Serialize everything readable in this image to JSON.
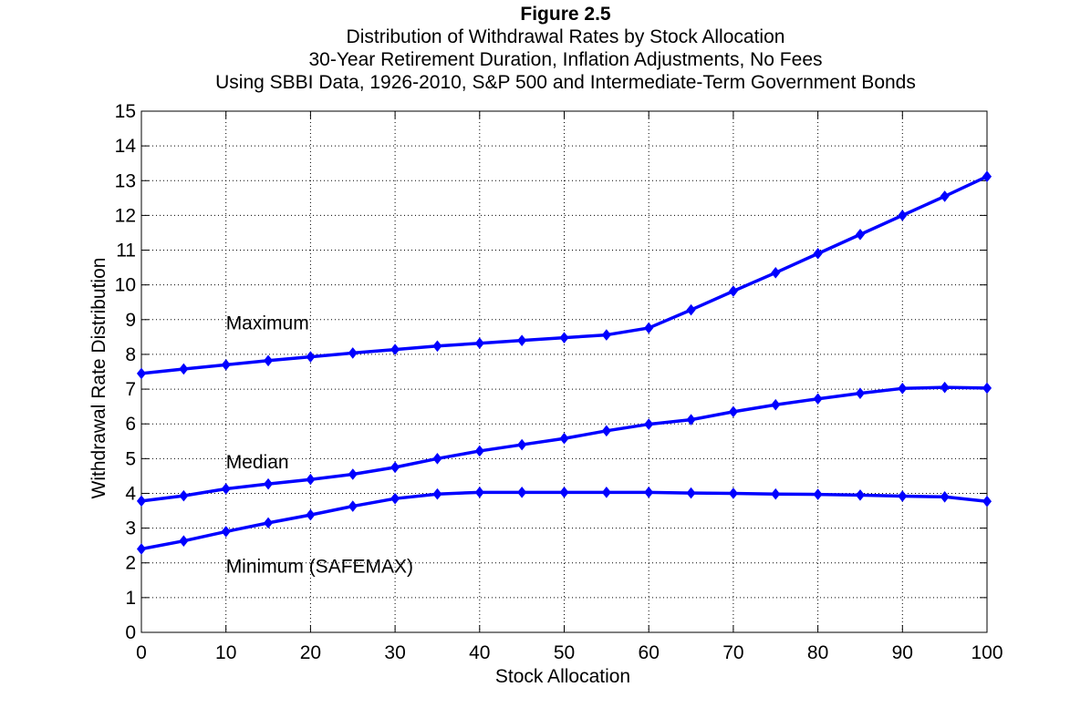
{
  "chart_data": {
    "type": "line",
    "title": "Figure 2.5",
    "subtitles": [
      "Distribution of Withdrawal Rates by Stock Allocation",
      "30-Year Retirement Duration, Inflation Adjustments, No Fees",
      "Using SBBI Data, 1926-2010, S&P 500 and Intermediate-Term Government Bonds"
    ],
    "xlabel": "Stock Allocation",
    "ylabel": "Withdrawal Rate Distribution",
    "xlim": [
      0,
      100
    ],
    "ylim": [
      0,
      15
    ],
    "xticks": [
      0,
      10,
      20,
      30,
      40,
      50,
      60,
      70,
      80,
      90,
      100
    ],
    "yticks": [
      0,
      1,
      2,
      3,
      4,
      5,
      6,
      7,
      8,
      9,
      10,
      11,
      12,
      13,
      14,
      15
    ],
    "grid": true,
    "x": [
      0,
      5,
      10,
      15,
      20,
      25,
      30,
      35,
      40,
      45,
      50,
      55,
      60,
      65,
      70,
      75,
      80,
      85,
      90,
      95,
      100
    ],
    "series": [
      {
        "name": "Maximum",
        "values": [
          7.45,
          7.58,
          7.7,
          7.82,
          7.93,
          8.04,
          8.14,
          8.24,
          8.32,
          8.4,
          8.48,
          8.56,
          8.76,
          9.28,
          9.82,
          10.35,
          10.9,
          11.45,
          12.0,
          12.55,
          13.12
        ]
      },
      {
        "name": "Median",
        "values": [
          3.78,
          3.93,
          4.13,
          4.27,
          4.4,
          4.55,
          4.75,
          5.0,
          5.22,
          5.4,
          5.58,
          5.8,
          5.99,
          6.12,
          6.35,
          6.55,
          6.72,
          6.88,
          7.02,
          7.05,
          7.03
        ]
      },
      {
        "name": "Minimum (SAFEMAX)",
        "values": [
          2.4,
          2.63,
          2.9,
          3.15,
          3.38,
          3.63,
          3.85,
          3.98,
          4.03,
          4.03,
          4.03,
          4.03,
          4.03,
          4.01,
          4.0,
          3.98,
          3.97,
          3.95,
          3.92,
          3.9,
          3.77
        ]
      }
    ],
    "annotations": [
      {
        "text": "Maximum",
        "x": 10,
        "y": 8.9
      },
      {
        "text": "Median",
        "x": 10,
        "y": 4.9
      },
      {
        "text": "Minimum (SAFEMAX)",
        "x": 10,
        "y": 1.9
      }
    ],
    "line_color": "#0000ff"
  }
}
